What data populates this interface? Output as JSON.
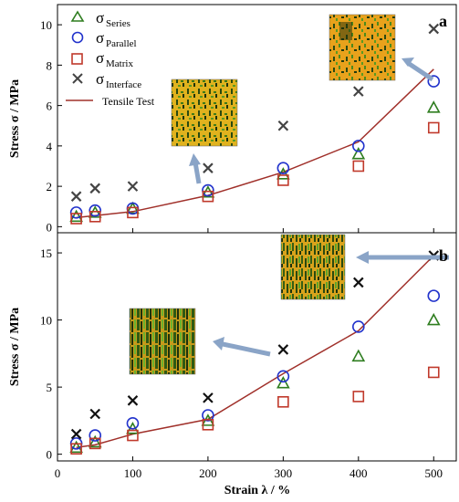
{
  "chart_data": [
    {
      "type": "scatter",
      "panel_label": "a",
      "ylabel": "Stress σ / MPa",
      "ylim": [
        -0.3,
        11
      ],
      "yticks": [
        0,
        2,
        4,
        6,
        8,
        10
      ],
      "legend_placement": "top-left",
      "series": [
        {
          "key": "series",
          "symbol": "σ",
          "sub": "Series",
          "marker": "triangle",
          "color": "#2e7d1f",
          "x": [
            25,
            50,
            100,
            200,
            300,
            400,
            500
          ],
          "y": [
            0.5,
            0.7,
            0.9,
            1.7,
            2.6,
            3.6,
            5.9
          ]
        },
        {
          "key": "parallel",
          "symbol": "σ",
          "sub": "Parallel",
          "marker": "circle",
          "color": "#2233cc",
          "x": [
            25,
            50,
            100,
            200,
            300,
            400,
            500
          ],
          "y": [
            0.7,
            0.8,
            0.9,
            1.8,
            2.9,
            4.0,
            7.2
          ]
        },
        {
          "key": "matrix",
          "symbol": "σ",
          "sub": "Matrix",
          "marker": "square",
          "color": "#c0392b",
          "x": [
            25,
            50,
            100,
            200,
            300,
            400,
            500
          ],
          "y": [
            0.4,
            0.5,
            0.7,
            1.5,
            2.3,
            3.0,
            4.9
          ]
        },
        {
          "key": "interface",
          "symbol": "σ",
          "sub": "Interface",
          "marker": "x",
          "color": "#444444",
          "x": [
            25,
            50,
            100,
            200,
            300,
            400,
            500
          ],
          "y": [
            1.5,
            1.9,
            2.0,
            2.9,
            5.0,
            6.7,
            9.8
          ]
        },
        {
          "key": "tensile",
          "symbol": "",
          "sub": "",
          "name": "Tensile Test",
          "marker": "line",
          "color": "#a0302a",
          "x": [
            25,
            50,
            100,
            200,
            300,
            400,
            500
          ],
          "y": [
            0.45,
            0.55,
            0.75,
            1.55,
            2.7,
            4.2,
            7.8
          ]
        }
      ]
    },
    {
      "type": "scatter",
      "panel_label": "b",
      "ylabel": "Stress σ / MPa",
      "xlabel": "Strain λ / %",
      "ylim": [
        -0.5,
        16.5
      ],
      "yticks": [
        0,
        5,
        10,
        15
      ],
      "xlim": [
        0,
        530
      ],
      "xticks": [
        0,
        100,
        200,
        300,
        400,
        500
      ],
      "series": [
        {
          "key": "series",
          "marker": "triangle",
          "color": "#2e7d1f",
          "x": [
            25,
            50,
            100,
            200,
            300,
            400,
            500
          ],
          "y": [
            0.5,
            0.9,
            1.9,
            2.5,
            5.3,
            7.3,
            10.0
          ]
        },
        {
          "key": "parallel",
          "marker": "circle",
          "color": "#2233cc",
          "x": [
            25,
            50,
            100,
            200,
            300,
            400,
            500
          ],
          "y": [
            0.8,
            1.4,
            2.3,
            2.9,
            5.8,
            9.5,
            11.8
          ]
        },
        {
          "key": "matrix",
          "marker": "square",
          "color": "#c0392b",
          "x": [
            25,
            50,
            100,
            200,
            300,
            400,
            500
          ],
          "y": [
            0.4,
            0.8,
            1.4,
            2.2,
            3.9,
            4.3,
            6.1
          ]
        },
        {
          "key": "interface",
          "marker": "x",
          "color": "#111111",
          "x": [
            25,
            50,
            100,
            200,
            300,
            400,
            500
          ],
          "y": [
            1.5,
            3.0,
            4.0,
            4.2,
            7.8,
            12.8,
            14.8
          ]
        },
        {
          "key": "tensile",
          "marker": "line",
          "color": "#a0302a",
          "x": [
            25,
            50,
            100,
            200,
            300,
            400,
            500
          ],
          "y": [
            0.5,
            0.7,
            1.5,
            2.6,
            6.0,
            9.2,
            14.8
          ]
        }
      ]
    }
  ]
}
